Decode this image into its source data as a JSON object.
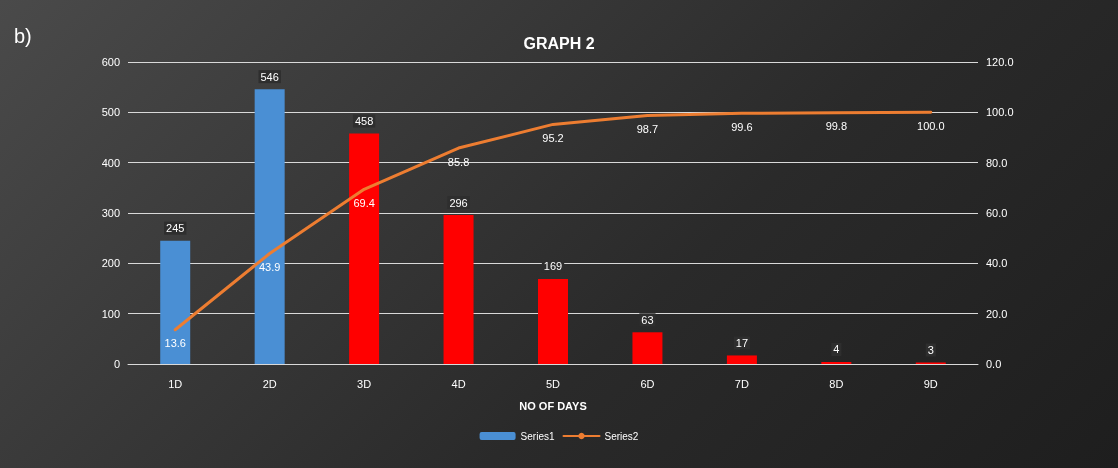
{
  "chart_data": {
    "type": "bar",
    "title": "GRAPH 2",
    "xlabel": "NO OF DAYS",
    "annotations": [
      "b)"
    ],
    "categories": [
      "1D",
      "2D",
      "3D",
      "4D",
      "5D",
      "6D",
      "7D",
      "8D",
      "9D"
    ],
    "series": [
      {
        "name": "Series1",
        "values": [
          245,
          546,
          458,
          296,
          169,
          63,
          17,
          4,
          3
        ],
        "colors": [
          "#4a8fd4",
          "#4a8fd4",
          "#ff0000",
          "#ff0000",
          "#ff0000",
          "#ff0000",
          "#ff0000",
          "#ff0000",
          "#ff0000"
        ],
        "data_labels": true
      },
      {
        "name": "Series2",
        "type": "line",
        "axis": "y2",
        "color": "#ed7d31",
        "values": [
          13.6,
          43.9,
          69.4,
          85.8,
          95.2,
          98.7,
          99.6,
          99.8,
          100.0
        ],
        "value_labels": [
          "13.6",
          "43.9",
          "69.4",
          "85.8",
          "95.2",
          "98.7",
          "99.6",
          "99.8",
          "100.0"
        ]
      }
    ],
    "ylim": [
      0,
      600
    ],
    "yticks": [
      0,
      100,
      200,
      300,
      400,
      500,
      600
    ],
    "y2lim": [
      0,
      120
    ],
    "y2ticks": [
      {
        "value": 0,
        "label": "0.0"
      },
      {
        "value": 20,
        "label": "20.0"
      },
      {
        "value": 40,
        "label": "40.0"
      },
      {
        "value": 60,
        "label": "60.0"
      },
      {
        "value": 80,
        "label": "80.0"
      },
      {
        "value": 100,
        "label": "100.0"
      },
      {
        "value": 120,
        "label": "120.0"
      }
    ],
    "grid": "y",
    "legend": "bottom",
    "marker": "none",
    "line_style": "solid"
  }
}
